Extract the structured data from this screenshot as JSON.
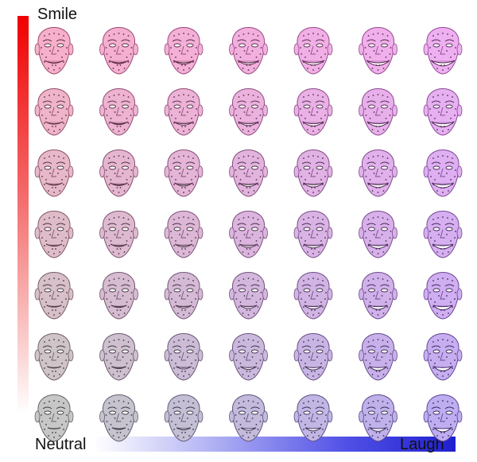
{
  "labels": {
    "smile": "Smile",
    "neutral": "Neutral",
    "laugh": "Laugh"
  },
  "axes": {
    "smile_axis_colors": [
      "#f00000",
      "#ffffff"
    ],
    "laugh_axis_colors": [
      "#ffffff",
      "#1f1fcf"
    ]
  },
  "grid": {
    "rows": 7,
    "cols": 7,
    "description_icon": "face-mesh-icon",
    "colors": {
      "neutral": "#9a9a9a",
      "smile": "#f06fa0",
      "laugh": "#8a6ae6",
      "smile_laugh": "#e070e6"
    }
  }
}
